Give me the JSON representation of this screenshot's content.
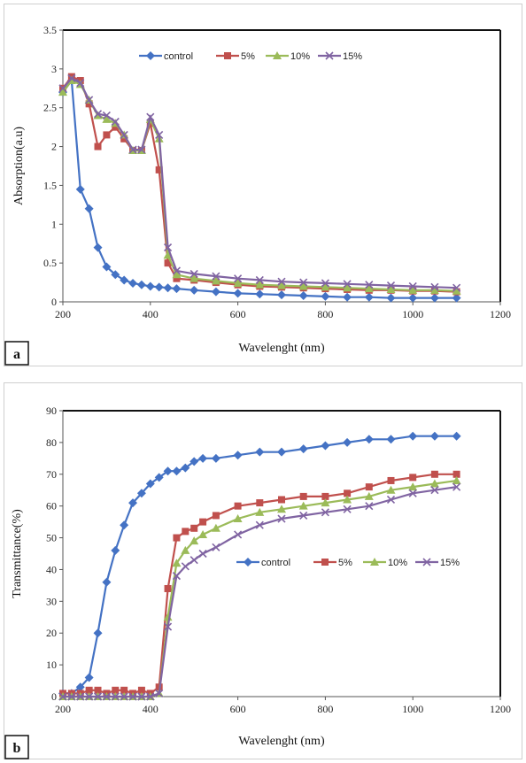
{
  "chart_data": [
    {
      "type": "line",
      "panel_label": "a",
      "xlabel": "Wavelenght (nm)",
      "ylabel": "Absorption(a.u)",
      "xlim": [
        200,
        1200
      ],
      "ylim": [
        0,
        3.5
      ],
      "xticks": [
        "200",
        "400",
        "600",
        "800",
        "1000",
        "1200"
      ],
      "yticks": [
        "0",
        "0.5",
        "1",
        "1.5",
        "2",
        "2.5",
        "3",
        "3.5"
      ],
      "legend_position": "top",
      "series": [
        {
          "name": "control",
          "color": "#4472c4",
          "marker": "diamond",
          "x": [
            200,
            220,
            240,
            260,
            280,
            300,
            320,
            340,
            360,
            380,
            400,
            420,
            440,
            460,
            500,
            550,
            600,
            650,
            700,
            750,
            800,
            850,
            900,
            950,
            1000,
            1050,
            1100
          ],
          "y": [
            2.7,
            2.85,
            1.45,
            1.2,
            0.7,
            0.45,
            0.35,
            0.28,
            0.24,
            0.22,
            0.2,
            0.19,
            0.18,
            0.17,
            0.15,
            0.13,
            0.11,
            0.1,
            0.09,
            0.08,
            0.07,
            0.06,
            0.06,
            0.05,
            0.05,
            0.05,
            0.05
          ]
        },
        {
          "name": "5%",
          "color": "#c0504d",
          "marker": "square",
          "x": [
            200,
            220,
            240,
            260,
            280,
            300,
            320,
            340,
            360,
            380,
            400,
            420,
            440,
            460,
            500,
            550,
            600,
            650,
            700,
            750,
            800,
            850,
            900,
            950,
            1000,
            1050,
            1100
          ],
          "y": [
            2.75,
            2.9,
            2.85,
            2.55,
            2.0,
            2.15,
            2.25,
            2.1,
            1.95,
            1.95,
            2.3,
            1.7,
            0.5,
            0.3,
            0.28,
            0.25,
            0.22,
            0.2,
            0.19,
            0.18,
            0.17,
            0.16,
            0.15,
            0.15,
            0.14,
            0.14,
            0.13
          ]
        },
        {
          "name": "10%",
          "color": "#9bbb59",
          "marker": "triangle",
          "x": [
            200,
            220,
            240,
            260,
            280,
            300,
            320,
            340,
            360,
            380,
            400,
            420,
            440,
            460,
            500,
            550,
            600,
            650,
            700,
            750,
            800,
            850,
            900,
            950,
            1000,
            1050,
            1100
          ],
          "y": [
            2.7,
            2.85,
            2.8,
            2.6,
            2.4,
            2.35,
            2.3,
            2.15,
            1.95,
            1.95,
            2.35,
            2.1,
            0.6,
            0.35,
            0.3,
            0.27,
            0.24,
            0.22,
            0.21,
            0.2,
            0.19,
            0.18,
            0.17,
            0.16,
            0.15,
            0.15,
            0.14
          ]
        },
        {
          "name": "15%",
          "color": "#8064a2",
          "marker": "x",
          "x": [
            200,
            220,
            240,
            260,
            280,
            300,
            320,
            340,
            360,
            380,
            400,
            420,
            440,
            460,
            500,
            550,
            600,
            650,
            700,
            750,
            800,
            850,
            900,
            950,
            1000,
            1050,
            1100
          ],
          "y": [
            2.75,
            2.88,
            2.82,
            2.6,
            2.42,
            2.4,
            2.32,
            2.15,
            1.96,
            1.96,
            2.38,
            2.15,
            0.7,
            0.4,
            0.36,
            0.33,
            0.3,
            0.28,
            0.26,
            0.25,
            0.24,
            0.23,
            0.22,
            0.21,
            0.2,
            0.19,
            0.18
          ]
        }
      ]
    },
    {
      "type": "line",
      "panel_label": "b",
      "xlabel": "Wavelenght (nm)",
      "ylabel": "Transmittance(%)",
      "xlim": [
        200,
        1200
      ],
      "ylim": [
        0,
        90
      ],
      "xticks": [
        "200",
        "400",
        "600",
        "800",
        "1000",
        "1200"
      ],
      "yticks": [
        "0",
        "10",
        "20",
        "30",
        "40",
        "50",
        "60",
        "70",
        "80",
        "90"
      ],
      "legend_position": "right",
      "series": [
        {
          "name": "control",
          "color": "#4472c4",
          "marker": "diamond",
          "x": [
            200,
            220,
            240,
            260,
            280,
            300,
            320,
            340,
            360,
            380,
            400,
            420,
            440,
            460,
            480,
            500,
            520,
            550,
            600,
            650,
            700,
            750,
            800,
            850,
            900,
            950,
            1000,
            1050,
            1100
          ],
          "y": [
            1,
            1,
            3,
            6,
            20,
            36,
            46,
            54,
            61,
            64,
            67,
            69,
            71,
            71,
            72,
            74,
            75,
            75,
            76,
            77,
            77,
            78,
            79,
            80,
            81,
            81,
            82,
            82,
            82
          ]
        },
        {
          "name": "5%",
          "color": "#c0504d",
          "marker": "square",
          "x": [
            200,
            220,
            240,
            260,
            280,
            300,
            320,
            340,
            360,
            380,
            400,
            420,
            440,
            460,
            480,
            500,
            520,
            550,
            600,
            650,
            700,
            750,
            800,
            850,
            900,
            950,
            1000,
            1050,
            1100
          ],
          "y": [
            1,
            1,
            1,
            2,
            2,
            1,
            2,
            2,
            1,
            2,
            1,
            3,
            34,
            50,
            52,
            53,
            55,
            57,
            60,
            61,
            62,
            63,
            63,
            64,
            66,
            68,
            69,
            70,
            70
          ]
        },
        {
          "name": "10%",
          "color": "#9bbb59",
          "marker": "triangle",
          "x": [
            200,
            220,
            240,
            260,
            280,
            300,
            320,
            340,
            360,
            380,
            400,
            420,
            440,
            460,
            480,
            500,
            520,
            550,
            600,
            650,
            700,
            750,
            800,
            850,
            900,
            950,
            1000,
            1050,
            1100
          ],
          "y": [
            0,
            0,
            0,
            0,
            0,
            0,
            0,
            0,
            0,
            0,
            0,
            1,
            25,
            42,
            46,
            49,
            51,
            53,
            56,
            58,
            59,
            60,
            61,
            62,
            63,
            65,
            66,
            67,
            68
          ]
        },
        {
          "name": "15%",
          "color": "#8064a2",
          "marker": "x",
          "x": [
            200,
            220,
            240,
            260,
            280,
            300,
            320,
            340,
            360,
            380,
            400,
            420,
            440,
            460,
            480,
            500,
            520,
            550,
            600,
            650,
            700,
            750,
            800,
            850,
            900,
            950,
            1000,
            1050,
            1100
          ],
          "y": [
            0,
            0,
            0,
            0,
            0,
            0,
            0,
            0,
            0,
            0,
            0,
            1,
            22,
            38,
            41,
            43,
            45,
            47,
            51,
            54,
            56,
            57,
            58,
            59,
            60,
            62,
            64,
            65,
            66
          ]
        }
      ]
    }
  ]
}
